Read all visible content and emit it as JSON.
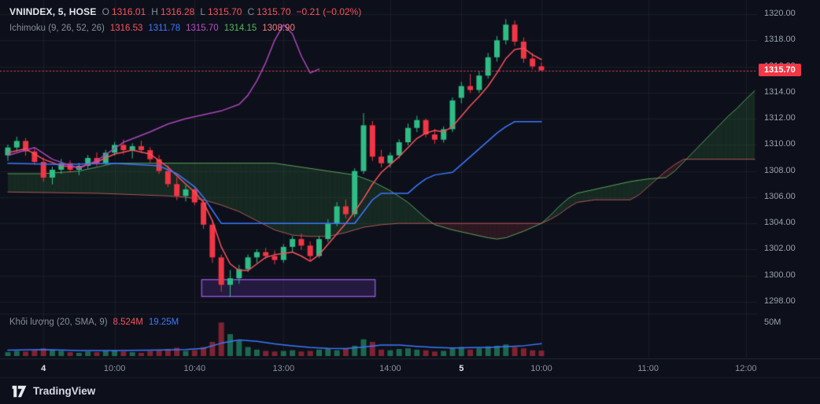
{
  "header": {
    "symbol": "VNINDEX, 5, HOSE",
    "o_label": "O",
    "o": "1316.01",
    "h_label": "H",
    "h": "1316.28",
    "l_label": "L",
    "l": "1315.70",
    "c_label": "C",
    "c": "1315.70",
    "change": "−0.21 (−0.02%)"
  },
  "ichimoku_legend": {
    "title": "Ichimoku (9, 26, 52, 26)",
    "conversion": "1316.53",
    "base": "1311.78",
    "lagging": "1315.70",
    "lead_a": "1314.15",
    "lead_b": "1308.90"
  },
  "volume_legend": {
    "title": "Khối lượng (20, SMA, 9)",
    "value": "8.524M",
    "ma": "19.25M"
  },
  "axes": {
    "price_labels": [
      "1320.00",
      "1318.00",
      "1316.00",
      "1314.00",
      "1312.00",
      "1310.00",
      "1308.00",
      "1306.00",
      "1304.00",
      "1302.00",
      "1300.00",
      "1298.00"
    ],
    "price_badge": "1315.70",
    "volume_label": "50M",
    "time_ticks": [
      {
        "label": "4",
        "bar": 4,
        "day": true
      },
      {
        "label": "10:00",
        "bar": 12,
        "day": false
      },
      {
        "label": "10:40",
        "bar": 21,
        "day": false
      },
      {
        "label": "13:00",
        "bar": 31,
        "day": false
      },
      {
        "label": "14:00",
        "bar": 43,
        "day": false
      },
      {
        "label": "5",
        "bar": 51,
        "day": true
      },
      {
        "label": "10:00",
        "bar": 60,
        "day": false
      },
      {
        "label": "11:00",
        "bar": 72,
        "day": false
      },
      {
        "label": "12:00",
        "bar": 83,
        "day": false
      }
    ]
  },
  "footer": {
    "brand": "TradingView"
  },
  "colors": {
    "background": "#0d101a",
    "up": "#2ebd85",
    "down": "#f23645",
    "tenkan": "#f7525f",
    "kijun": "#3c78ff",
    "chikou": "#ab47bc",
    "senkou_a": "#55b85c",
    "senkou_b": "#ef7070",
    "cloud_up": "rgba(76,175,80,0.16)",
    "cloud_down": "rgba(229,77,77,0.15)",
    "volume_up": "rgba(46,189,133,0.5)",
    "volume_down": "rgba(242,54,69,0.5)",
    "volume_ma": "#3c78ff",
    "annotation_stroke": "#8e4fd0",
    "annotation_fill": "rgba(98,52,161,0.28)",
    "price_line": "rgba(247,82,95,0.85)",
    "badge_bg": "#f23645",
    "grid": "rgba(255,255,255,0.05)"
  },
  "chart_data": {
    "type": "candlestick",
    "symbol": "VNINDEX",
    "interval": "5",
    "exchange": "HOSE",
    "title": "VNINDEX 5-minute with Ichimoku (9, 26, 52, 26) and Volume",
    "price_axis": {
      "min": 1298,
      "max": 1320,
      "step": 2
    },
    "volume_axis_max_label": 50,
    "last_price_line": 1315.7,
    "ohlc_last": {
      "o": 1316.01,
      "h": 1316.28,
      "l": 1315.7,
      "c": 1315.7,
      "change": -0.21,
      "change_pct": -0.02
    },
    "candles": [
      [
        1309.2,
        1310.0,
        1308.8,
        1309.8,
        6
      ],
      [
        1309.8,
        1310.6,
        1309.5,
        1310.3,
        8
      ],
      [
        1310.3,
        1310.5,
        1309.2,
        1309.5,
        7
      ],
      [
        1309.5,
        1309.7,
        1308.5,
        1308.7,
        9
      ],
      [
        1308.7,
        1309.0,
        1307.2,
        1307.5,
        12
      ],
      [
        1307.5,
        1308.3,
        1307.0,
        1308.1,
        10
      ],
      [
        1308.1,
        1308.9,
        1307.8,
        1308.6,
        8
      ],
      [
        1308.6,
        1308.8,
        1307.9,
        1308.1,
        6
      ],
      [
        1308.1,
        1308.6,
        1307.7,
        1308.4,
        5
      ],
      [
        1308.4,
        1309.2,
        1308.2,
        1309.0,
        7
      ],
      [
        1309.0,
        1309.4,
        1308.4,
        1308.6,
        6
      ],
      [
        1308.6,
        1309.6,
        1308.5,
        1309.4,
        8
      ],
      [
        1309.4,
        1310.2,
        1309.2,
        1310.0,
        9
      ],
      [
        1310.0,
        1310.4,
        1309.3,
        1309.6,
        7
      ],
      [
        1309.6,
        1310.1,
        1309.0,
        1309.9,
        6
      ],
      [
        1309.9,
        1310.3,
        1309.4,
        1309.6,
        5
      ],
      [
        1309.6,
        1309.8,
        1308.6,
        1308.9,
        8
      ],
      [
        1308.9,
        1309.2,
        1307.8,
        1308.0,
        9
      ],
      [
        1308.0,
        1308.4,
        1306.8,
        1307.0,
        11
      ],
      [
        1307.0,
        1307.5,
        1305.8,
        1306.1,
        13
      ],
      [
        1306.1,
        1306.9,
        1305.7,
        1306.6,
        8
      ],
      [
        1306.6,
        1306.8,
        1305.4,
        1305.6,
        9
      ],
      [
        1305.6,
        1305.8,
        1303.6,
        1303.9,
        14
      ],
      [
        1303.9,
        1304.2,
        1301.0,
        1301.4,
        22
      ],
      [
        1301.4,
        1301.6,
        1298.8,
        1299.3,
        52
      ],
      [
        1299.3,
        1300.4,
        1298.4,
        1299.8,
        34
      ],
      [
        1299.8,
        1300.8,
        1299.4,
        1300.5,
        24
      ],
      [
        1300.5,
        1301.6,
        1300.3,
        1301.4,
        14
      ],
      [
        1301.4,
        1302.0,
        1301.0,
        1301.8,
        10
      ],
      [
        1301.8,
        1302.1,
        1301.3,
        1301.5,
        8
      ],
      [
        1301.5,
        1301.9,
        1300.9,
        1301.2,
        7
      ],
      [
        1301.2,
        1302.4,
        1301.0,
        1302.2,
        8
      ],
      [
        1302.2,
        1303.0,
        1301.8,
        1302.8,
        9
      ],
      [
        1302.8,
        1303.2,
        1302.0,
        1302.3,
        7
      ],
      [
        1302.3,
        1302.6,
        1301.2,
        1301.5,
        8
      ],
      [
        1301.5,
        1303.0,
        1301.4,
        1302.8,
        10
      ],
      [
        1302.8,
        1304.3,
        1302.6,
        1304.0,
        12
      ],
      [
        1304.0,
        1305.6,
        1303.8,
        1305.3,
        9
      ],
      [
        1305.3,
        1305.8,
        1304.4,
        1304.7,
        11
      ],
      [
        1304.7,
        1308.2,
        1304.5,
        1308.0,
        16
      ],
      [
        1308.0,
        1312.4,
        1307.8,
        1311.5,
        26
      ],
      [
        1311.5,
        1311.8,
        1308.8,
        1309.1,
        22
      ],
      [
        1309.1,
        1309.6,
        1308.3,
        1308.6,
        10
      ],
      [
        1308.6,
        1309.4,
        1308.3,
        1309.2,
        9
      ],
      [
        1309.2,
        1310.4,
        1309.0,
        1310.2,
        11
      ],
      [
        1310.2,
        1311.6,
        1310.0,
        1311.3,
        12
      ],
      [
        1311.3,
        1312.2,
        1311.0,
        1311.9,
        10
      ],
      [
        1311.9,
        1312.0,
        1310.6,
        1310.8,
        9
      ],
      [
        1310.8,
        1311.2,
        1310.1,
        1310.4,
        7
      ],
      [
        1310.4,
        1311.4,
        1310.2,
        1311.2,
        8
      ],
      [
        1311.2,
        1313.6,
        1311.0,
        1313.4,
        13
      ],
      [
        1313.6,
        1314.8,
        1313.2,
        1314.5,
        14
      ],
      [
        1314.5,
        1315.4,
        1314.0,
        1314.2,
        10
      ],
      [
        1314.2,
        1315.6,
        1314.0,
        1315.3,
        12
      ],
      [
        1315.3,
        1317.0,
        1315.1,
        1316.7,
        15
      ],
      [
        1316.7,
        1318.3,
        1316.4,
        1318.0,
        16
      ],
      [
        1318.0,
        1319.6,
        1317.7,
        1319.2,
        18
      ],
      [
        1319.2,
        1319.5,
        1317.6,
        1317.9,
        14
      ],
      [
        1317.9,
        1318.2,
        1316.3,
        1316.6,
        12
      ],
      [
        1316.6,
        1317.0,
        1315.8,
        1316.0,
        9
      ],
      [
        1316.01,
        1316.28,
        1315.7,
        1315.7,
        8.524
      ]
    ],
    "overlays": {
      "tenkan": [
        [
          0,
          1309.4
        ],
        [
          2,
          1309.7
        ],
        [
          4,
          1308.9
        ],
        [
          6,
          1308.4
        ],
        [
          8,
          1308.3
        ],
        [
          10,
          1308.7
        ],
        [
          12,
          1309.3
        ],
        [
          14,
          1309.6
        ],
        [
          16,
          1309.3
        ],
        [
          18,
          1308.3
        ],
        [
          20,
          1307.0
        ],
        [
          21,
          1306.4
        ],
        [
          22,
          1305.6
        ],
        [
          23,
          1304.2
        ],
        [
          24,
          1302.2
        ],
        [
          25,
          1300.9
        ],
        [
          26,
          1300.4
        ],
        [
          27,
          1300.4
        ],
        [
          28,
          1300.9
        ],
        [
          29,
          1301.4
        ],
        [
          30,
          1301.6
        ],
        [
          31,
          1301.7
        ],
        [
          32,
          1301.8
        ],
        [
          33,
          1301.5
        ],
        [
          34,
          1301.1
        ],
        [
          35,
          1301.6
        ],
        [
          36,
          1302.4
        ],
        [
          37,
          1303.2
        ],
        [
          38,
          1304.0
        ],
        [
          39,
          1304.9
        ],
        [
          40,
          1305.9
        ],
        [
          41,
          1307.0
        ],
        [
          42,
          1307.9
        ],
        [
          43,
          1308.5
        ],
        [
          44,
          1309.1
        ],
        [
          45,
          1309.8
        ],
        [
          46,
          1310.5
        ],
        [
          47,
          1310.9
        ],
        [
          48,
          1311.1
        ],
        [
          49,
          1311.0
        ],
        [
          50,
          1311.4
        ],
        [
          51,
          1312.2
        ],
        [
          52,
          1313.0
        ],
        [
          53,
          1313.7
        ],
        [
          54,
          1314.5
        ],
        [
          55,
          1315.5
        ],
        [
          56,
          1316.6
        ],
        [
          57,
          1317.3
        ],
        [
          58,
          1317.4
        ],
        [
          59,
          1316.9
        ],
        [
          60,
          1316.53
        ]
      ],
      "kijun": [
        [
          0,
          1308.6
        ],
        [
          6,
          1308.5
        ],
        [
          12,
          1308.6
        ],
        [
          17,
          1308.4
        ],
        [
          19,
          1307.8
        ],
        [
          21,
          1306.8
        ],
        [
          22,
          1306.0
        ],
        [
          23,
          1305.0
        ],
        [
          24,
          1304.0
        ],
        [
          39,
          1304.0
        ],
        [
          40,
          1304.9
        ],
        [
          41,
          1305.8
        ],
        [
          42,
          1306.3
        ],
        [
          45,
          1306.3
        ],
        [
          46,
          1306.9
        ],
        [
          47,
          1307.4
        ],
        [
          48,
          1307.7
        ],
        [
          50,
          1307.9
        ],
        [
          51,
          1308.5
        ],
        [
          52,
          1309.1
        ],
        [
          53,
          1309.7
        ],
        [
          54,
          1310.3
        ],
        [
          55,
          1310.9
        ],
        [
          56,
          1311.4
        ],
        [
          57,
          1311.78
        ],
        [
          60,
          1311.78
        ]
      ],
      "chikou": [
        [
          0,
          1309.2
        ],
        [
          3,
          1309.8
        ],
        [
          5,
          1308.9
        ],
        [
          8,
          1308.2
        ],
        [
          10,
          1308.8
        ],
        [
          13,
          1310.2
        ],
        [
          16,
          1311.0
        ],
        [
          18,
          1311.6
        ],
        [
          20,
          1312.0
        ],
        [
          22,
          1312.3
        ],
        [
          24,
          1312.6
        ],
        [
          26,
          1313.1
        ],
        [
          27,
          1313.8
        ],
        [
          28,
          1314.9
        ],
        [
          29,
          1316.3
        ],
        [
          30,
          1318.0
        ],
        [
          31,
          1319.2
        ],
        [
          32,
          1318.5
        ],
        [
          33,
          1316.8
        ],
        [
          34,
          1315.5
        ],
        [
          35,
          1315.8
        ]
      ],
      "senkou_a": [
        [
          0,
          1307.8
        ],
        [
          4,
          1307.8
        ],
        [
          8,
          1308.0
        ],
        [
          10,
          1308.3
        ],
        [
          12,
          1308.6
        ],
        [
          30,
          1308.6
        ],
        [
          33,
          1308.3
        ],
        [
          36,
          1308.0
        ],
        [
          39,
          1307.7
        ],
        [
          41,
          1307.2
        ],
        [
          43,
          1306.5
        ],
        [
          45,
          1305.6
        ],
        [
          46,
          1305.0
        ],
        [
          47,
          1304.4
        ],
        [
          48,
          1303.9
        ],
        [
          50,
          1303.5
        ],
        [
          52,
          1303.2
        ],
        [
          54,
          1302.9
        ],
        [
          55,
          1302.8
        ],
        [
          56,
          1302.9
        ],
        [
          58,
          1303.4
        ],
        [
          60,
          1304.0
        ],
        [
          61,
          1304.6
        ],
        [
          62,
          1305.3
        ],
        [
          63,
          1305.9
        ],
        [
          64,
          1306.3
        ],
        [
          66,
          1306.6
        ],
        [
          68,
          1306.9
        ],
        [
          70,
          1307.2
        ],
        [
          72,
          1307.4
        ],
        [
          74,
          1307.5
        ],
        [
          75,
          1308.0
        ],
        [
          76,
          1308.7
        ],
        [
          77,
          1309.4
        ],
        [
          78,
          1310.1
        ],
        [
          79,
          1310.8
        ],
        [
          80,
          1311.5
        ],
        [
          81,
          1312.2
        ],
        [
          82,
          1312.8
        ],
        [
          83,
          1313.5
        ],
        [
          84,
          1314.15
        ]
      ],
      "senkou_b": [
        [
          0,
          1306.4
        ],
        [
          10,
          1306.3
        ],
        [
          14,
          1306.2
        ],
        [
          18,
          1306.1
        ],
        [
          20,
          1306.0
        ],
        [
          22,
          1305.8
        ],
        [
          24,
          1305.4
        ],
        [
          26,
          1304.9
        ],
        [
          28,
          1304.2
        ],
        [
          30,
          1303.5
        ],
        [
          32,
          1303.1
        ],
        [
          34,
          1303.0
        ],
        [
          36,
          1303.0
        ],
        [
          38,
          1303.3
        ],
        [
          40,
          1303.7
        ],
        [
          42,
          1303.9
        ],
        [
          44,
          1304.0
        ],
        [
          58,
          1304.0
        ],
        [
          60,
          1304.0
        ],
        [
          61,
          1304.3
        ],
        [
          62,
          1304.7
        ],
        [
          63,
          1305.2
        ],
        [
          64,
          1305.6
        ],
        [
          66,
          1305.8
        ],
        [
          70,
          1305.8
        ],
        [
          71,
          1306.2
        ],
        [
          72,
          1306.8
        ],
        [
          73,
          1307.4
        ],
        [
          74,
          1308.0
        ],
        [
          75,
          1308.5
        ],
        [
          76,
          1308.9
        ],
        [
          84,
          1308.9
        ]
      ]
    },
    "volume_ma": [
      [
        0,
        9
      ],
      [
        4,
        10
      ],
      [
        8,
        8.5
      ],
      [
        12,
        8.5
      ],
      [
        16,
        9
      ],
      [
        20,
        10
      ],
      [
        22,
        12
      ],
      [
        24,
        20
      ],
      [
        26,
        25
      ],
      [
        28,
        23
      ],
      [
        30,
        19
      ],
      [
        32,
        16
      ],
      [
        34,
        13.5
      ],
      [
        36,
        12
      ],
      [
        38,
        11.5
      ],
      [
        40,
        14
      ],
      [
        42,
        17
      ],
      [
        44,
        17
      ],
      [
        46,
        15
      ],
      [
        48,
        13.5
      ],
      [
        50,
        12.5
      ],
      [
        52,
        13
      ],
      [
        54,
        13.5
      ],
      [
        56,
        14.5
      ],
      [
        58,
        16
      ],
      [
        60,
        19.25
      ]
    ],
    "annotations": [
      {
        "type": "rect",
        "bar_start": 21.8,
        "bar_end": 41.3,
        "price_top": 1299.7,
        "price_bottom": 1298.4
      }
    ]
  }
}
